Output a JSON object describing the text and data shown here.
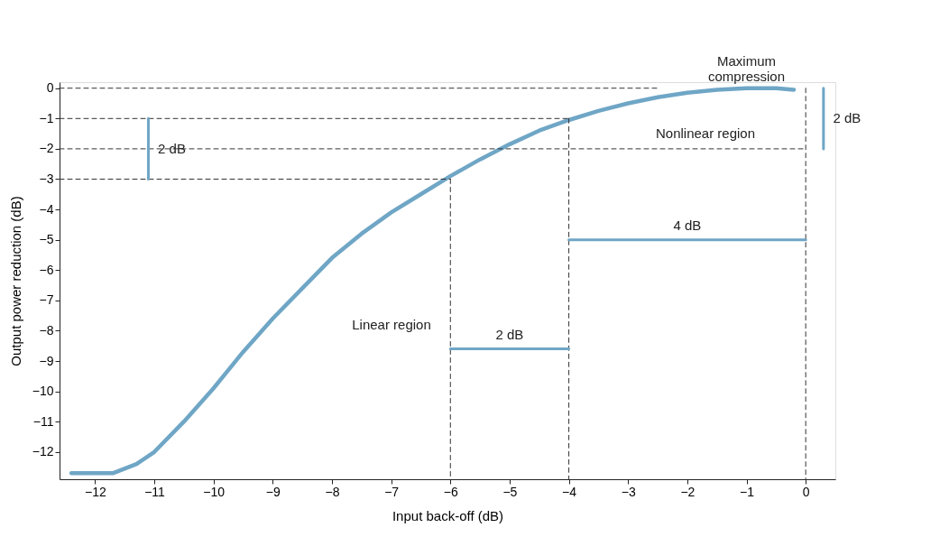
{
  "chart_data": {
    "type": "line",
    "xlabel": "Input back-off (dB)",
    "ylabel": "Output power reduction (dB)",
    "xlim": [
      -12.6,
      0.5
    ],
    "ylim": [
      -12.9,
      0.2
    ],
    "xticks": [
      -12,
      -11,
      -10,
      -9,
      -8,
      -7,
      -6,
      -5,
      -4,
      -3,
      -2,
      -1,
      0
    ],
    "yticks": [
      -12,
      -11,
      -10,
      -9,
      -8,
      -7,
      -6,
      -5,
      -4,
      -3,
      -2,
      -1,
      0
    ],
    "grid": false,
    "marker": "none",
    "series": [
      {
        "color": "#6fa6c6",
        "line_style": "solid",
        "x": [
          -12.4,
          -11.7,
          -11.3,
          -11.0,
          -10.5,
          -10.0,
          -9.5,
          -9.0,
          -8.5,
          -8.0,
          -7.5,
          -7.0,
          -6.5,
          -6.0,
          -5.5,
          -5.0,
          -4.5,
          -4.0,
          -3.5,
          -3.0,
          -2.5,
          -2.0,
          -1.5,
          -1.0,
          -0.5,
          -0.2
        ],
        "values": [
          -12.7,
          -12.7,
          -12.4,
          -12.0,
          -11.0,
          -9.9,
          -8.7,
          -7.6,
          -6.6,
          -5.6,
          -4.8,
          -4.1,
          -3.5,
          -2.9,
          -2.35,
          -1.85,
          -1.4,
          -1.05,
          -0.75,
          -0.5,
          -0.3,
          -0.15,
          -0.05,
          0,
          0,
          -0.05
        ]
      },
      {
        "color": "#333333",
        "line_style": "dashed",
        "x": [
          -12.6,
          -2.5
        ],
        "values": [
          0,
          0
        ]
      },
      {
        "color": "#333333",
        "line_style": "dashed",
        "x": [
          -12.6,
          -4.0
        ],
        "values": [
          -1,
          -1
        ]
      },
      {
        "color": "#333333",
        "line_style": "dashed",
        "x": [
          -12.6,
          0
        ],
        "values": [
          -2,
          -2
        ]
      },
      {
        "color": "#333333",
        "line_style": "dashed",
        "x": [
          -12.6,
          -6.0
        ],
        "values": [
          -3,
          -3
        ]
      },
      {
        "color": "#333333",
        "line_style": "dashed",
        "x": [
          -6,
          -6
        ],
        "values": [
          -3,
          -12.9
        ]
      },
      {
        "color": "#333333",
        "line_style": "dashed",
        "x": [
          -4,
          -4
        ],
        "values": [
          -1,
          -12.9
        ]
      },
      {
        "color": "#333333",
        "line_style": "dashed",
        "x": [
          0,
          0
        ],
        "values": [
          0,
          -12.9
        ]
      },
      {
        "color": "#6fa6c6",
        "line_style": "solid",
        "x": [
          -11.1,
          -11.1
        ],
        "values": [
          -1,
          -3
        ]
      },
      {
        "color": "#6fa6c6",
        "line_style": "solid",
        "x": [
          0.3,
          0.3
        ],
        "values": [
          0,
          -2
        ]
      },
      {
        "color": "#6fa6c6",
        "line_style": "solid",
        "x": [
          -4,
          0
        ],
        "values": [
          -5,
          -5
        ]
      },
      {
        "color": "#6fa6c6",
        "line_style": "solid",
        "x": [
          -6,
          -4
        ],
        "values": [
          -8.6,
          -8.6
        ]
      }
    ],
    "annotations": [
      {
        "text": "Maximum compression",
        "x": -1,
        "y": 0
      },
      "Nonlinear region",
      "Linear region",
      {
        "text": "2 dB",
        "x": -11.1,
        "y": -2
      },
      {
        "text": "2 dB",
        "x": 0.3,
        "y": -1
      },
      {
        "text": "4 dB",
        "x": -2,
        "y": -5
      },
      {
        "text": "2 dB",
        "x": -5,
        "y": -8.6
      }
    ]
  }
}
